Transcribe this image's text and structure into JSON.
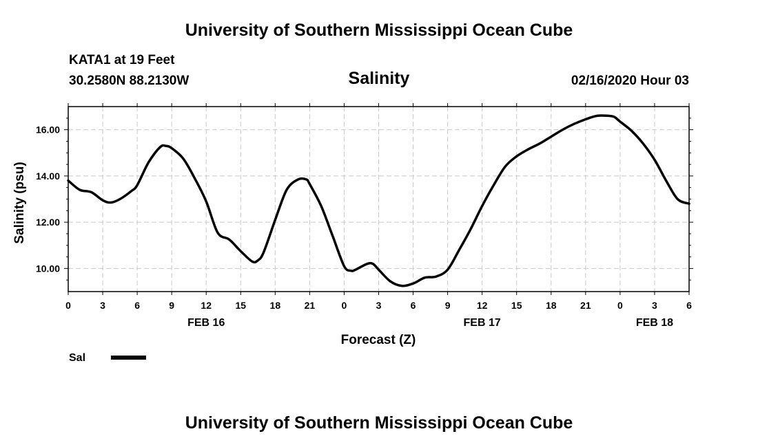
{
  "page": {
    "title_top": "University of Southern Mississippi Ocean Cube",
    "title_bottom": "University of Southern Mississippi Ocean Cube",
    "station": "KATA1 at 19 Feet",
    "location": "30.2580N 88.2130W",
    "run_time": "02/16/2020 Hour 03"
  },
  "colors": {
    "line": "#000000",
    "grid": "#c8c8c8",
    "frame": "#000000"
  },
  "chart_data": {
    "type": "line",
    "title": "Salinity",
    "xlabel": "Forecast (Z)",
    "ylabel": "Salinity (psu)",
    "xlim": [
      0,
      54
    ],
    "ylim": [
      9.0,
      17.0
    ],
    "grid": true,
    "x_ticks": [
      0,
      3,
      6,
      9,
      12,
      15,
      18,
      21,
      24,
      27,
      30,
      33,
      36,
      39,
      42,
      45,
      48,
      51,
      54
    ],
    "x_tick_labels": [
      "0",
      "3",
      "6",
      "9",
      "12",
      "15",
      "18",
      "21",
      "0",
      "3",
      "6",
      "9",
      "12",
      "15",
      "18",
      "21",
      "0",
      "3",
      "6"
    ],
    "y_ticks": [
      10,
      12,
      14,
      16
    ],
    "y_tick_labels": [
      "10.00",
      "12.00",
      "14.00",
      "16.00"
    ],
    "y_minor_ticks": [
      9.5,
      10.5,
      11,
      11.5,
      12.5,
      13,
      13.5,
      14.5,
      15,
      15.5,
      16.5
    ],
    "date_labels": [
      {
        "x": 12,
        "label": "FEB 16"
      },
      {
        "x": 36,
        "label": "FEB 17"
      },
      {
        "x": 51,
        "label": "FEB 18"
      }
    ],
    "legend": {
      "label": "Sal",
      "position": "bottom-left"
    },
    "series": [
      {
        "name": "Sal",
        "x": [
          0,
          1,
          2,
          3,
          3.7,
          4.5,
          5.5,
          6,
          7,
          8,
          8.5,
          9,
          10,
          11,
          12,
          13,
          14,
          15,
          16,
          16.5,
          17,
          18,
          19,
          20,
          20.7,
          21,
          22,
          23,
          24,
          24.6,
          25,
          26,
          26.5,
          27,
          28,
          29,
          30,
          31,
          32,
          33,
          34,
          35,
          36,
          37,
          38,
          39,
          40,
          41,
          42,
          43,
          44,
          45,
          46,
          47,
          47.5,
          48,
          49,
          50,
          51,
          52,
          53,
          54
        ],
        "values": [
          13.8,
          13.4,
          13.3,
          12.95,
          12.85,
          13.0,
          13.35,
          13.6,
          14.6,
          15.25,
          15.3,
          15.2,
          14.75,
          13.9,
          12.9,
          11.55,
          11.25,
          10.75,
          10.3,
          10.35,
          10.7,
          12.1,
          13.4,
          13.85,
          13.85,
          13.65,
          12.7,
          11.4,
          10.1,
          9.9,
          9.95,
          10.2,
          10.2,
          9.95,
          9.45,
          9.25,
          9.35,
          9.6,
          9.65,
          9.95,
          10.8,
          11.7,
          12.7,
          13.6,
          14.4,
          14.85,
          15.15,
          15.4,
          15.7,
          16.0,
          16.25,
          16.45,
          16.6,
          16.6,
          16.55,
          16.35,
          15.95,
          15.4,
          14.7,
          13.8,
          13.0,
          12.8
        ]
      }
    ]
  }
}
